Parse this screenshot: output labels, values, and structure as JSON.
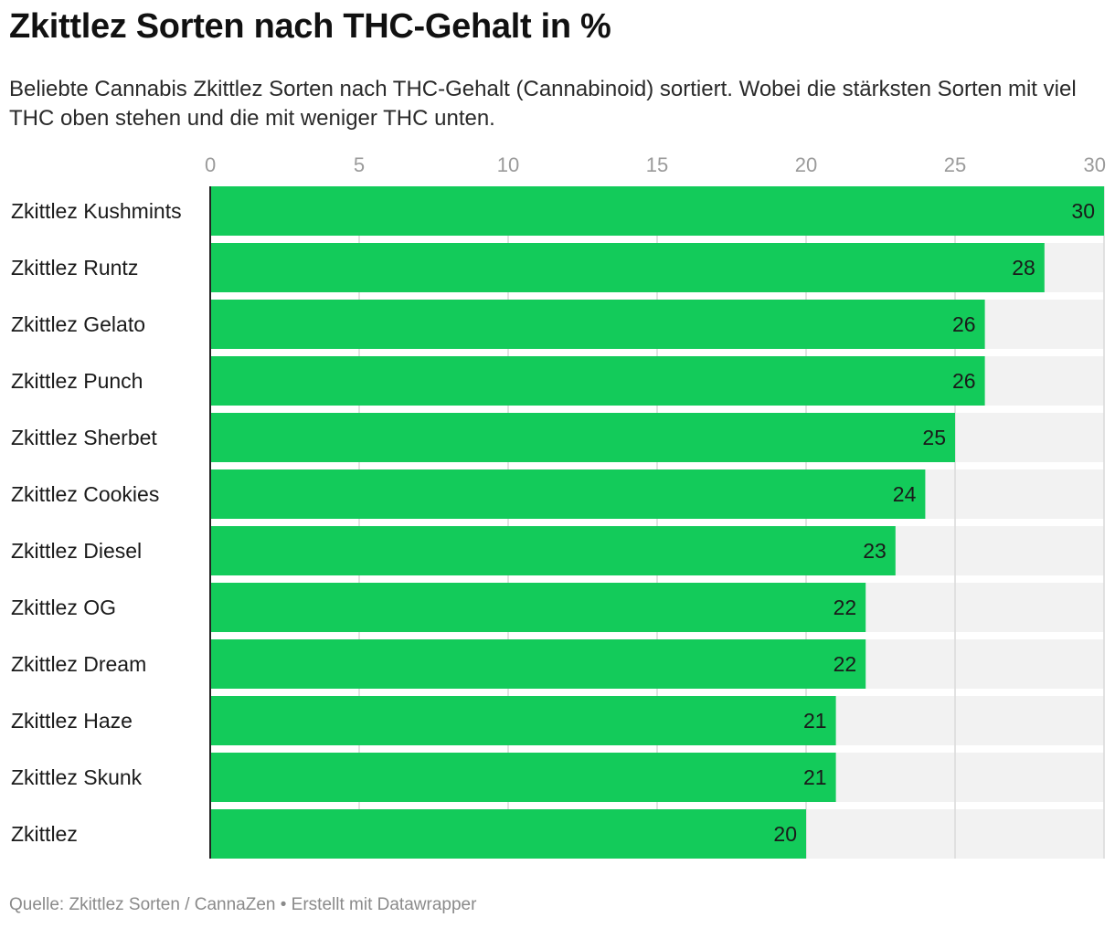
{
  "header": {
    "title": "Zkittlez Sorten nach THC-Gehalt in %",
    "subtitle": "Beliebte Cannabis Zkittlez Sorten nach THC-Gehalt (Cannabinoid) sortiert. Wobei die stärksten Sorten mit viel THC oben stehen und die mit weniger THC unten."
  },
  "footer": {
    "source": "Quelle: Zkittlez Sorten / CannaZen • Erstellt mit Datawrapper"
  },
  "colors": {
    "bar": "#13cb5a",
    "track": "#f2f2f2",
    "grid": "#d9d9d9",
    "axis_label": "#9a9a9a",
    "baseline": "#222222"
  },
  "chart_data": {
    "type": "bar",
    "orientation": "horizontal",
    "title": "Zkittlez Sorten nach THC-Gehalt in %",
    "xlim": [
      0,
      30
    ],
    "x_ticks": [
      0,
      5,
      10,
      15,
      20,
      25,
      30
    ],
    "x_axis_position": "top",
    "grid": true,
    "categories": [
      "Zkittlez Kushmints",
      "Zkittlez Runtz",
      "Zkittlez Gelato",
      "Zkittlez Punch",
      "Zkittlez Sherbet",
      "Zkittlez Cookies",
      "Zkittlez Diesel",
      "Zkittlez OG",
      "Zkittlez Dream",
      "Zkittlez Haze",
      "Zkittlez Skunk",
      "Zkittlez"
    ],
    "values": [
      30,
      28,
      26,
      26,
      25,
      24,
      23,
      22,
      22,
      21,
      21,
      20
    ]
  }
}
